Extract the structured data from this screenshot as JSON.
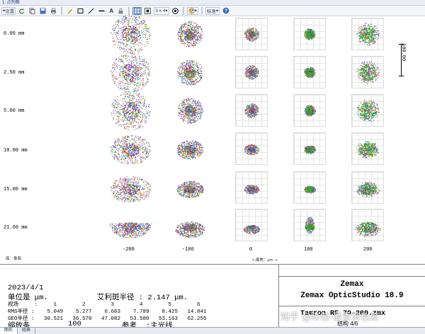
{
  "window": {
    "title": "1: 点列图"
  },
  "toolbar": {
    "settings_label": "设置",
    "layout_label": "3 x 4",
    "standard_label": "标准",
    "dropdown_arrow": "▾",
    "help_label": "?",
    "text_tool": "A"
  },
  "plot": {
    "field_labels": [
      "0.00 mm",
      "2.50 mm",
      "5.00 mm",
      "10.00 mm",
      "15.00 mm",
      "21.60 mm"
    ],
    "defocus_ticks": [
      "-200",
      "-100",
      "0",
      "100",
      "200"
    ],
    "scale_label": "100.00",
    "surface_label": "面：像面",
    "axis_note": "<-离焦：μm ->"
  },
  "spot_colors": {
    "blue": "#1f2bff",
    "green": "#18b818",
    "red": "#ff1a1a",
    "magenta": "#d23ad2",
    "cyan": "#1ab8b8",
    "yellow": "#c8b400",
    "olive": "#6a8a00",
    "purple": "#7a20c0"
  },
  "info": {
    "date": "2023/4/1",
    "units": "单位是 μm.",
    "airy_label": "艾利斑半径 : 2.147 μm.",
    "field_header": "视场     :     1        2        3        4        5        6",
    "rms_row": "RMS半径 :    5.049    5.277    6.603    7.789    8.425   14.841",
    "geo_row": "GEO半径 :   30.521   36.570   47.082   53.580   53.163   62.255",
    "scale_row_label": "缩放条",
    "scale_row_value": "100",
    "ref_label": "参考",
    "ref_value": ":主光线",
    "brand": "Zemax",
    "product": "Zemax OpticStudio 18.9",
    "lens_file": "Tamron RF 70-200.zmx",
    "config": "结构 4/6"
  },
  "watermark": "知乎 @陈佳-最爱消色差",
  "tabs": [
    "图形",
    "经典"
  ]
}
